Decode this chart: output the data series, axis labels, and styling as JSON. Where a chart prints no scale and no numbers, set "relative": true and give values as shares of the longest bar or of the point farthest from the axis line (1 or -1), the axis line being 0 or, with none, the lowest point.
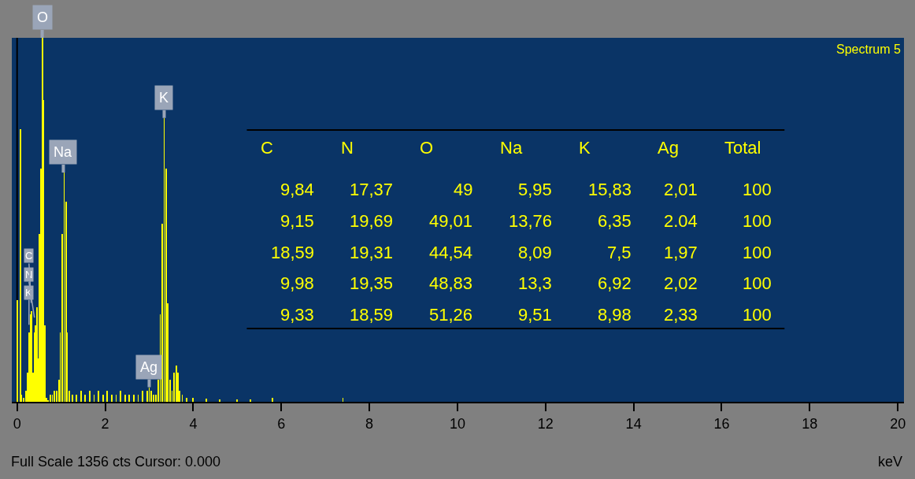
{
  "chart_data": {
    "type": "bar",
    "relative": true,
    "xlabel": "keV",
    "xlim": [
      -0.12,
      20.14
    ],
    "xticks": [
      0,
      2,
      4,
      6,
      8,
      10,
      12,
      14,
      16,
      18,
      20
    ],
    "x": [
      0.0,
      0.07,
      0.1,
      0.15,
      0.2,
      0.24,
      0.27,
      0.3,
      0.33,
      0.36,
      0.39,
      0.42,
      0.45,
      0.48,
      0.51,
      0.54,
      0.57,
      0.6,
      0.63,
      0.66,
      0.7,
      0.75,
      0.8,
      0.85,
      0.9,
      0.95,
      0.98,
      1.02,
      1.07,
      1.11,
      1.14,
      1.18,
      1.25,
      1.35,
      1.45,
      1.55,
      1.65,
      1.75,
      1.85,
      1.95,
      2.05,
      2.15,
      2.25,
      2.35,
      2.45,
      2.55,
      2.65,
      2.75,
      2.85,
      2.95,
      3.0,
      3.05,
      3.1,
      3.15,
      3.2,
      3.25,
      3.29,
      3.34,
      3.38,
      3.42,
      3.47,
      3.52,
      3.56,
      3.61,
      3.65,
      3.69,
      3.75,
      3.85,
      4.0,
      4.3,
      4.6,
      5.0,
      5.3,
      5.8,
      7.4
    ],
    "values": [
      0.28,
      0.75,
      0.02,
      0.01,
      0.03,
      0.08,
      0.19,
      0.24,
      0.25,
      0.08,
      0.19,
      0.21,
      0.26,
      0.12,
      0.46,
      0.64,
      1.0,
      0.83,
      0.21,
      0.01,
      0.005,
      0.02,
      0.02,
      0.03,
      0.03,
      0.06,
      0.19,
      0.46,
      0.63,
      0.55,
      0.19,
      0.03,
      0.02,
      0.02,
      0.03,
      0.02,
      0.03,
      0.02,
      0.03,
      0.02,
      0.03,
      0.02,
      0.02,
      0.03,
      0.02,
      0.02,
      0.02,
      0.02,
      0.03,
      0.03,
      0.04,
      0.03,
      0.02,
      0.02,
      0.06,
      0.24,
      0.49,
      0.78,
      0.64,
      0.27,
      0.06,
      0.03,
      0.08,
      0.1,
      0.08,
      0.03,
      0.02,
      0.01,
      0.01,
      0.008,
      0.007,
      0.007,
      0.006,
      0.01,
      0.01
    ],
    "color": "#ffff00",
    "ref_lines": [
      {
        "axis": "x",
        "value": 0,
        "color": "#000000"
      }
    ],
    "annotations": [
      "Spectrum 5",
      "Full Scale 1356 cts Cursor: 0.000",
      {
        "text": "K",
        "x": 0.27,
        "y": 0.19
      },
      {
        "text": "N",
        "x": 0.42,
        "y": 0.21
      },
      {
        "text": "C",
        "x": 0.33,
        "y": 0.25
      },
      {
        "text": "O",
        "x": 0.57,
        "y": 1.0
      },
      {
        "text": "Na",
        "x": 1.05,
        "y": 0.63
      },
      {
        "text": "K",
        "x": 3.34,
        "y": 0.78
      },
      {
        "text": "Ag",
        "x": 3.0,
        "y": 0.04
      },
      "C",
      "N",
      "O",
      "Na",
      "K",
      "Ag",
      "Total",
      "9,84",
      "17,37",
      "49",
      "5,95",
      "15,83",
      "2,01",
      "100",
      "9,15",
      "19,69",
      "49,01",
      "13,76",
      "6,35",
      "2.04",
      "100",
      "18,59",
      "19,31",
      "44,54",
      "8,09",
      "7,5",
      "1,97",
      "100",
      "9,98",
      "19,35",
      "48,83",
      "13,3",
      "6,92",
      "2,02",
      "100",
      "9,33",
      "18,59",
      "51,26",
      "9,51",
      "8,98",
      "2,33",
      "100"
    ]
  }
}
